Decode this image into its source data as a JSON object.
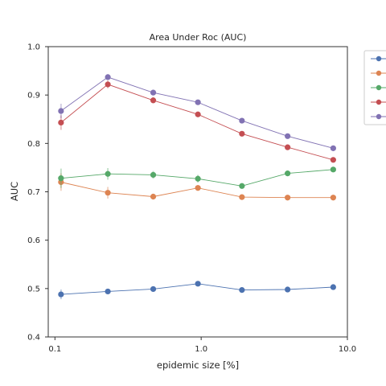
{
  "chart_data": {
    "type": "line",
    "title": "Area Under Roc (AUC)",
    "xlabel": "epidemic size [%]",
    "ylabel": "AUC",
    "xscale": "log",
    "xlim": [
      0.09,
      10.0
    ],
    "ylim": [
      0.4,
      1.0
    ],
    "xticks": [
      {
        "value": 0.1,
        "label": "0.1"
      },
      {
        "value": 1.0,
        "label": "1.0"
      },
      {
        "value": 10.0,
        "label": "10.0"
      }
    ],
    "yticks": [
      {
        "value": 0.4,
        "label": "0.4"
      },
      {
        "value": 0.5,
        "label": "0.5"
      },
      {
        "value": 0.6,
        "label": "0.6"
      },
      {
        "value": 0.7,
        "label": "0.7"
      },
      {
        "value": 0.8,
        "label": "0.8"
      },
      {
        "value": 0.9,
        "label": "0.9"
      },
      {
        "value": 1.0,
        "label": "1.0"
      }
    ],
    "grid": false,
    "legend": "outside-right (entry labels cropped)",
    "x": [
      0.11,
      0.23,
      0.47,
      0.95,
      1.9,
      3.9,
      8.0
    ],
    "series": [
      {
        "color": "#4c72b0",
        "values": [
          0.488,
          0.494,
          0.499,
          0.51,
          0.497,
          0.498,
          0.503
        ],
        "err": [
          0.01,
          0.005,
          0.004,
          0.004,
          0.003,
          0.003,
          0.003
        ]
      },
      {
        "color": "#dd8452",
        "values": [
          0.72,
          0.698,
          0.69,
          0.708,
          0.689,
          0.688,
          0.688
        ],
        "err": [
          0.018,
          0.012,
          0.006,
          0.006,
          0.004,
          0.003,
          0.003
        ]
      },
      {
        "color": "#55a868",
        "values": [
          0.728,
          0.737,
          0.735,
          0.727,
          0.712,
          0.738,
          0.746
        ],
        "err": [
          0.02,
          0.012,
          0.008,
          0.008,
          0.005,
          0.004,
          0.003
        ]
      },
      {
        "color": "#c44e52",
        "values": [
          0.843,
          0.922,
          0.889,
          0.86,
          0.82,
          0.792,
          0.766
        ],
        "err": [
          0.015,
          0.008,
          0.006,
          0.005,
          0.004,
          0.003,
          0.003
        ]
      },
      {
        "color": "#8172b3",
        "values": [
          0.867,
          0.937,
          0.905,
          0.885,
          0.847,
          0.815,
          0.79
        ],
        "err": [
          0.015,
          0.006,
          0.005,
          0.004,
          0.003,
          0.003,
          0.003
        ]
      }
    ]
  }
}
